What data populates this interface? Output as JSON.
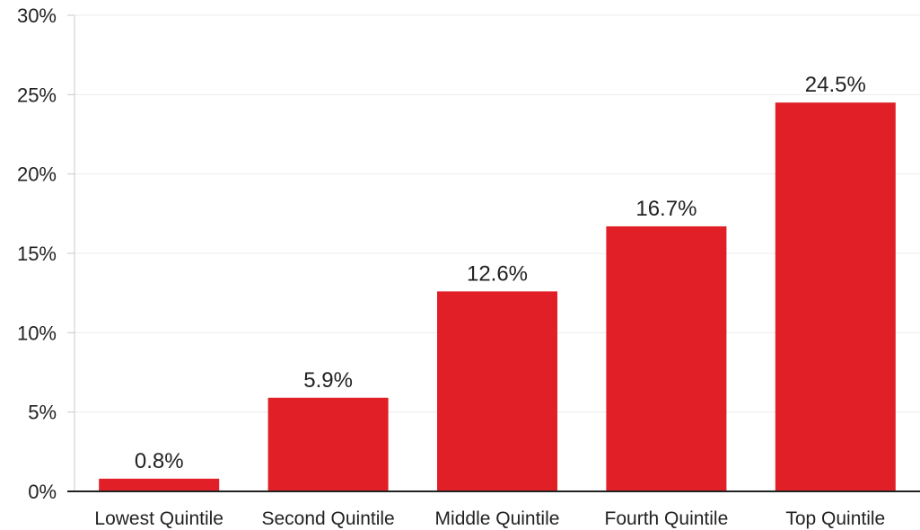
{
  "chart_data": {
    "type": "bar",
    "title": "",
    "xlabel": "",
    "ylabel": "",
    "categories": [
      "Lowest Quintile",
      "Second Quintile",
      "Middle Quintile",
      "Fourth Quintile",
      "Top Quintile"
    ],
    "values": [
      0.8,
      5.9,
      12.6,
      16.7,
      24.5
    ],
    "data_labels": [
      "0.8%",
      "5.9%",
      "12.6%",
      "16.7%",
      "24.5%"
    ],
    "ylim": [
      0,
      30
    ],
    "yticks": [
      0,
      5,
      10,
      15,
      20,
      25,
      30
    ],
    "ytick_labels": [
      "0%",
      "5%",
      "10%",
      "15%",
      "20%",
      "25%",
      "30%"
    ],
    "grid": true,
    "bar_color": "#e01f26"
  }
}
